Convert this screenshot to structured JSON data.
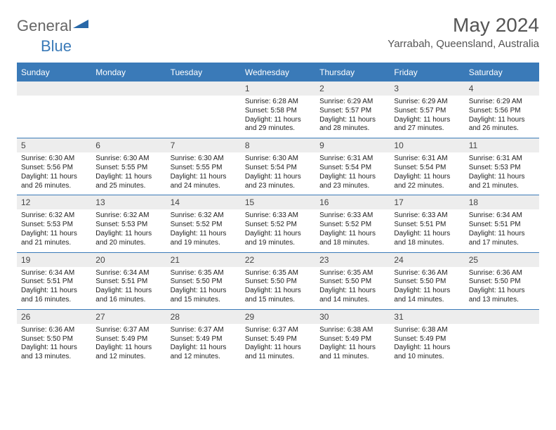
{
  "logo": {
    "text1": "General",
    "text2": "Blue"
  },
  "title": "May 2024",
  "location": "Yarrabah, Queensland, Australia",
  "colors": {
    "accent": "#3a7ab8",
    "header_text": "#ffffff",
    "daynum_bg": "#ededed",
    "body_text": "#222222"
  },
  "day_headers": [
    "Sunday",
    "Monday",
    "Tuesday",
    "Wednesday",
    "Thursday",
    "Friday",
    "Saturday"
  ],
  "weeks": [
    [
      {
        "blank": true
      },
      {
        "blank": true
      },
      {
        "blank": true
      },
      {
        "n": "1",
        "sr": "Sunrise: 6:28 AM",
        "ss": "Sunset: 5:58 PM",
        "d1": "Daylight: 11 hours",
        "d2": "and 29 minutes."
      },
      {
        "n": "2",
        "sr": "Sunrise: 6:29 AM",
        "ss": "Sunset: 5:57 PM",
        "d1": "Daylight: 11 hours",
        "d2": "and 28 minutes."
      },
      {
        "n": "3",
        "sr": "Sunrise: 6:29 AM",
        "ss": "Sunset: 5:57 PM",
        "d1": "Daylight: 11 hours",
        "d2": "and 27 minutes."
      },
      {
        "n": "4",
        "sr": "Sunrise: 6:29 AM",
        "ss": "Sunset: 5:56 PM",
        "d1": "Daylight: 11 hours",
        "d2": "and 26 minutes."
      }
    ],
    [
      {
        "n": "5",
        "sr": "Sunrise: 6:30 AM",
        "ss": "Sunset: 5:56 PM",
        "d1": "Daylight: 11 hours",
        "d2": "and 26 minutes."
      },
      {
        "n": "6",
        "sr": "Sunrise: 6:30 AM",
        "ss": "Sunset: 5:55 PM",
        "d1": "Daylight: 11 hours",
        "d2": "and 25 minutes."
      },
      {
        "n": "7",
        "sr": "Sunrise: 6:30 AM",
        "ss": "Sunset: 5:55 PM",
        "d1": "Daylight: 11 hours",
        "d2": "and 24 minutes."
      },
      {
        "n": "8",
        "sr": "Sunrise: 6:30 AM",
        "ss": "Sunset: 5:54 PM",
        "d1": "Daylight: 11 hours",
        "d2": "and 23 minutes."
      },
      {
        "n": "9",
        "sr": "Sunrise: 6:31 AM",
        "ss": "Sunset: 5:54 PM",
        "d1": "Daylight: 11 hours",
        "d2": "and 23 minutes."
      },
      {
        "n": "10",
        "sr": "Sunrise: 6:31 AM",
        "ss": "Sunset: 5:54 PM",
        "d1": "Daylight: 11 hours",
        "d2": "and 22 minutes."
      },
      {
        "n": "11",
        "sr": "Sunrise: 6:31 AM",
        "ss": "Sunset: 5:53 PM",
        "d1": "Daylight: 11 hours",
        "d2": "and 21 minutes."
      }
    ],
    [
      {
        "n": "12",
        "sr": "Sunrise: 6:32 AM",
        "ss": "Sunset: 5:53 PM",
        "d1": "Daylight: 11 hours",
        "d2": "and 21 minutes."
      },
      {
        "n": "13",
        "sr": "Sunrise: 6:32 AM",
        "ss": "Sunset: 5:53 PM",
        "d1": "Daylight: 11 hours",
        "d2": "and 20 minutes."
      },
      {
        "n": "14",
        "sr": "Sunrise: 6:32 AM",
        "ss": "Sunset: 5:52 PM",
        "d1": "Daylight: 11 hours",
        "d2": "and 19 minutes."
      },
      {
        "n": "15",
        "sr": "Sunrise: 6:33 AM",
        "ss": "Sunset: 5:52 PM",
        "d1": "Daylight: 11 hours",
        "d2": "and 19 minutes."
      },
      {
        "n": "16",
        "sr": "Sunrise: 6:33 AM",
        "ss": "Sunset: 5:52 PM",
        "d1": "Daylight: 11 hours",
        "d2": "and 18 minutes."
      },
      {
        "n": "17",
        "sr": "Sunrise: 6:33 AM",
        "ss": "Sunset: 5:51 PM",
        "d1": "Daylight: 11 hours",
        "d2": "and 18 minutes."
      },
      {
        "n": "18",
        "sr": "Sunrise: 6:34 AM",
        "ss": "Sunset: 5:51 PM",
        "d1": "Daylight: 11 hours",
        "d2": "and 17 minutes."
      }
    ],
    [
      {
        "n": "19",
        "sr": "Sunrise: 6:34 AM",
        "ss": "Sunset: 5:51 PM",
        "d1": "Daylight: 11 hours",
        "d2": "and 16 minutes."
      },
      {
        "n": "20",
        "sr": "Sunrise: 6:34 AM",
        "ss": "Sunset: 5:51 PM",
        "d1": "Daylight: 11 hours",
        "d2": "and 16 minutes."
      },
      {
        "n": "21",
        "sr": "Sunrise: 6:35 AM",
        "ss": "Sunset: 5:50 PM",
        "d1": "Daylight: 11 hours",
        "d2": "and 15 minutes."
      },
      {
        "n": "22",
        "sr": "Sunrise: 6:35 AM",
        "ss": "Sunset: 5:50 PM",
        "d1": "Daylight: 11 hours",
        "d2": "and 15 minutes."
      },
      {
        "n": "23",
        "sr": "Sunrise: 6:35 AM",
        "ss": "Sunset: 5:50 PM",
        "d1": "Daylight: 11 hours",
        "d2": "and 14 minutes."
      },
      {
        "n": "24",
        "sr": "Sunrise: 6:36 AM",
        "ss": "Sunset: 5:50 PM",
        "d1": "Daylight: 11 hours",
        "d2": "and 14 minutes."
      },
      {
        "n": "25",
        "sr": "Sunrise: 6:36 AM",
        "ss": "Sunset: 5:50 PM",
        "d1": "Daylight: 11 hours",
        "d2": "and 13 minutes."
      }
    ],
    [
      {
        "n": "26",
        "sr": "Sunrise: 6:36 AM",
        "ss": "Sunset: 5:50 PM",
        "d1": "Daylight: 11 hours",
        "d2": "and 13 minutes."
      },
      {
        "n": "27",
        "sr": "Sunrise: 6:37 AM",
        "ss": "Sunset: 5:49 PM",
        "d1": "Daylight: 11 hours",
        "d2": "and 12 minutes."
      },
      {
        "n": "28",
        "sr": "Sunrise: 6:37 AM",
        "ss": "Sunset: 5:49 PM",
        "d1": "Daylight: 11 hours",
        "d2": "and 12 minutes."
      },
      {
        "n": "29",
        "sr": "Sunrise: 6:37 AM",
        "ss": "Sunset: 5:49 PM",
        "d1": "Daylight: 11 hours",
        "d2": "and 11 minutes."
      },
      {
        "n": "30",
        "sr": "Sunrise: 6:38 AM",
        "ss": "Sunset: 5:49 PM",
        "d1": "Daylight: 11 hours",
        "d2": "and 11 minutes."
      },
      {
        "n": "31",
        "sr": "Sunrise: 6:38 AM",
        "ss": "Sunset: 5:49 PM",
        "d1": "Daylight: 11 hours",
        "d2": "and 10 minutes."
      },
      {
        "blank": true
      }
    ]
  ]
}
